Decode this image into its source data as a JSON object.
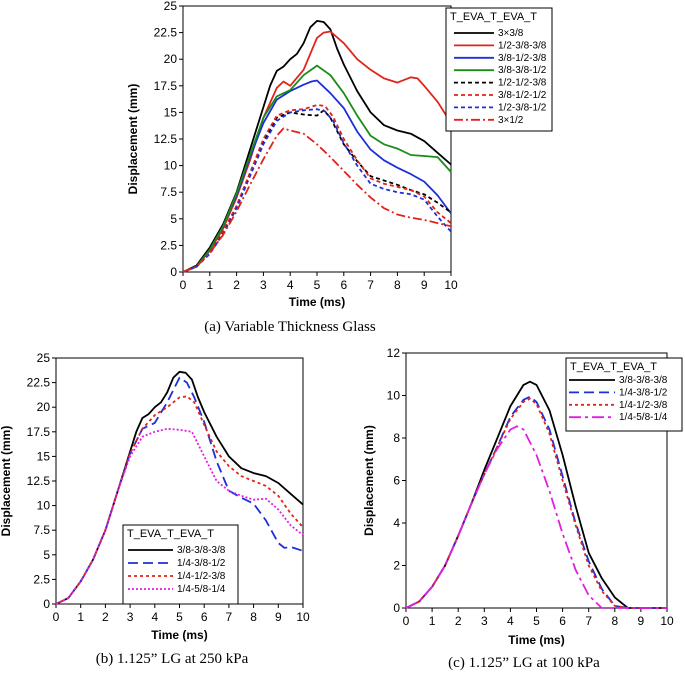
{
  "chart_data": [
    {
      "id": "a",
      "type": "line",
      "caption": "(a) Variable Thickness Glass",
      "xlabel": "Time (ms)",
      "ylabel": "Displacement (mm)",
      "xlim": [
        0,
        10
      ],
      "ylim": [
        0,
        25
      ],
      "xticks": [
        "0",
        "1",
        "2",
        "3",
        "4",
        "5",
        "6",
        "7",
        "8",
        "9",
        "10"
      ],
      "yticks": [
        "0",
        "2.5",
        "5",
        "7.5",
        "10",
        "12.5",
        "15",
        "17.5",
        "20",
        "22.5",
        "25"
      ],
      "legend_title": "T_EVA_T_EVA_T",
      "legend_position": "top-right",
      "series": [
        {
          "name": "3×3/8",
          "color": "#000000",
          "dash": "solid",
          "x": [
            0,
            0.5,
            1,
            1.5,
            2,
            2.5,
            3,
            3.25,
            3.5,
            3.75,
            4,
            4.25,
            4.5,
            4.75,
            5,
            5.25,
            5.5,
            5.75,
            6,
            6.5,
            7,
            7.5,
            8,
            8.5,
            9,
            9.5,
            10
          ],
          "y": [
            0,
            0.6,
            2.3,
            4.5,
            7.5,
            11.5,
            15.5,
            17.5,
            18.9,
            19.3,
            20,
            20.5,
            21.5,
            23,
            23.6,
            23.5,
            22.8,
            21,
            19.5,
            17,
            15,
            13.8,
            13.3,
            13,
            12.3,
            11.2,
            10.1
          ]
        },
        {
          "name": "1/2-3/8-3/8",
          "color": "#e0241b",
          "dash": "solid",
          "x": [
            0,
            0.5,
            1,
            1.5,
            2,
            2.5,
            3,
            3.5,
            3.75,
            4,
            4.5,
            5,
            5.25,
            5.5,
            6,
            6.5,
            7,
            7.5,
            8,
            8.5,
            8.75,
            9,
            9.5,
            10
          ],
          "y": [
            0,
            0.5,
            2,
            4.1,
            7,
            10.5,
            14.5,
            17.3,
            17.9,
            17.5,
            19,
            22,
            22.5,
            22.6,
            21.5,
            20,
            19,
            18.2,
            17.8,
            18.3,
            18.2,
            17.5,
            16,
            14
          ]
        },
        {
          "name": "3/8-1/2-3/8",
          "color": "#1e2fd8",
          "dash": "solid",
          "x": [
            0,
            0.5,
            1,
            1.5,
            2,
            2.5,
            3,
            3.5,
            4,
            4.5,
            4.8,
            5,
            5.5,
            6,
            6.5,
            7,
            7.5,
            8,
            8.5,
            9,
            9.5,
            10
          ],
          "y": [
            0,
            0.5,
            2.1,
            4.3,
            7.2,
            10.8,
            14,
            16.2,
            17,
            17.6,
            17.9,
            18,
            16.8,
            15.4,
            13.2,
            11.5,
            10.5,
            9.8,
            9.2,
            8.5,
            7.2,
            5.5
          ]
        },
        {
          "name": "3/8-3/8-1/2",
          "color": "#1a8c1a",
          "dash": "solid",
          "x": [
            0,
            0.5,
            1,
            1.5,
            2,
            2.5,
            3,
            3.5,
            4,
            4.5,
            5,
            5.5,
            6,
            6.5,
            7,
            7.5,
            8,
            8.5,
            9,
            9.5,
            10
          ],
          "y": [
            0,
            0.5,
            2.1,
            4.3,
            7.4,
            11,
            14.5,
            16.5,
            17.1,
            18.5,
            19.4,
            18.5,
            16.8,
            14.7,
            12.8,
            12,
            11.6,
            11,
            10.9,
            10.8,
            9.4
          ]
        },
        {
          "name": "1/2-1/2-3/8",
          "color": "#000000",
          "dash": "4,3",
          "x": [
            0,
            0.5,
            1,
            1.5,
            2,
            2.5,
            3,
            3.5,
            4,
            4.5,
            5,
            5.25,
            5.5,
            6,
            6.5,
            7,
            7.5,
            8,
            8.5,
            9,
            9.5,
            10
          ],
          "y": [
            0,
            0.5,
            1.8,
            3.8,
            6.2,
            9.3,
            12.3,
            14.5,
            15,
            14.8,
            14.7,
            15.2,
            14.5,
            12,
            10.4,
            9,
            8.6,
            8.2,
            7.7,
            7.3,
            6.5,
            5.6
          ]
        },
        {
          "name": "3/8-1/2-1/2",
          "color": "#e0241b",
          "dash": "4,3",
          "x": [
            0,
            0.5,
            1,
            1.5,
            2,
            2.5,
            3,
            3.5,
            4,
            4.5,
            5,
            5.3,
            5.6,
            6,
            6.5,
            7,
            7.5,
            8,
            8.5,
            9,
            9.5,
            10
          ],
          "y": [
            0,
            0.5,
            1.8,
            3.8,
            6.2,
            9.3,
            12.5,
            14.7,
            15.2,
            15.3,
            15.7,
            15.6,
            14.6,
            12.5,
            10.5,
            8.8,
            8.3,
            8,
            7.7,
            7.1,
            5.6,
            4.6
          ]
        },
        {
          "name": "1/2-3/8-1/2",
          "color": "#1e2fd8",
          "dash": "4,3",
          "x": [
            0,
            0.5,
            1,
            1.5,
            2,
            2.5,
            3,
            3.5,
            4,
            4.5,
            5,
            5.3,
            5.6,
            6,
            6.5,
            7,
            7.5,
            8,
            8.5,
            9,
            9.5,
            10
          ],
          "y": [
            0,
            0.5,
            1.7,
            3.6,
            6,
            9,
            12,
            14.2,
            15,
            15.2,
            15.3,
            15.1,
            14.2,
            12.1,
            10,
            8.3,
            7.8,
            7.5,
            7.3,
            6.8,
            5.2,
            3.8
          ]
        },
        {
          "name": "3×1/2",
          "color": "#e0241b",
          "dash": "9,3,2,3",
          "x": [
            0,
            0.5,
            1,
            1.5,
            2,
            2.5,
            3,
            3.5,
            3.75,
            4,
            4.5,
            5,
            5.5,
            6,
            6.5,
            7,
            7.5,
            8,
            8.5,
            9,
            9.5,
            10
          ],
          "y": [
            0,
            0.5,
            1.8,
            3.5,
            5.7,
            8.2,
            10.6,
            12.8,
            13.5,
            13.3,
            13,
            12,
            10.8,
            9.5,
            8.2,
            7,
            6,
            5.4,
            5.1,
            4.9,
            4.6,
            4.3
          ]
        }
      ]
    },
    {
      "id": "b",
      "type": "line",
      "caption": "(b) 1.125” LG at 250 kPa",
      "xlabel": "Time (ms)",
      "ylabel": "Displacement (mm)",
      "xlim": [
        0,
        10
      ],
      "ylim": [
        0,
        25
      ],
      "xticks": [
        "0",
        "1",
        "2",
        "3",
        "4",
        "5",
        "6",
        "7",
        "8",
        "9",
        "10"
      ],
      "yticks": [
        "0",
        "2.5",
        "5",
        "7.5",
        "10",
        "12.5",
        "15",
        "17.5",
        "20",
        "22.5",
        "25"
      ],
      "legend_title": "T_EVA_T_EVA_T",
      "legend_position": "bottom-left",
      "series": [
        {
          "name": "3/8-3/8-3/8",
          "color": "#000000",
          "dash": "solid",
          "x": [
            0,
            0.5,
            1,
            1.5,
            2,
            2.5,
            3,
            3.25,
            3.5,
            3.75,
            4,
            4.25,
            4.5,
            4.75,
            5,
            5.25,
            5.5,
            5.75,
            6,
            6.5,
            7,
            7.5,
            8,
            8.5,
            9,
            9.5,
            10
          ],
          "y": [
            0,
            0.6,
            2.3,
            4.5,
            7.5,
            11.5,
            15.5,
            17.5,
            18.9,
            19.3,
            20,
            20.5,
            21.5,
            23,
            23.6,
            23.5,
            22.8,
            21,
            19.5,
            17,
            15,
            13.8,
            13.3,
            13,
            12.3,
            11.2,
            10.1
          ]
        },
        {
          "name": "1/4-3/8-1/2",
          "color": "#1e2fd8",
          "dash": "10,5",
          "x": [
            0,
            0.5,
            1,
            1.5,
            2,
            2.5,
            3,
            3.5,
            4,
            4.5,
            4.8,
            5,
            5.3,
            5.6,
            6,
            6.5,
            7,
            7.5,
            8,
            8.5,
            9,
            9.25,
            9.5,
            10
          ],
          "y": [
            0,
            0.6,
            2.3,
            4.5,
            7.5,
            11.5,
            15.3,
            17.8,
            18.4,
            20.5,
            22,
            23,
            22.5,
            21,
            18.5,
            14.5,
            11.5,
            10.8,
            10.2,
            8.5,
            6.2,
            5.7,
            5.8,
            5.4
          ]
        },
        {
          "name": "1/4-1/2-3/8",
          "color": "#e0241b",
          "dash": "3,3",
          "x": [
            0,
            0.5,
            1,
            1.5,
            2,
            2.5,
            3,
            3.5,
            4,
            4.5,
            5,
            5.3,
            5.6,
            6,
            6.5,
            7,
            7.5,
            8,
            8.5,
            9,
            9.5,
            10
          ],
          "y": [
            0,
            0.6,
            2.3,
            4.5,
            7.5,
            11.5,
            15.3,
            17.8,
            19.2,
            20,
            21,
            21.1,
            20.5,
            18.2,
            15.5,
            14,
            13,
            12.5,
            12,
            11,
            9.2,
            7.8
          ]
        },
        {
          "name": "1/4-5/8-1/4",
          "color": "#e31ee3",
          "dash": "2,2",
          "x": [
            0,
            0.5,
            1,
            1.5,
            2,
            2.5,
            3,
            3.5,
            4,
            4.5,
            5,
            5.5,
            6,
            6.5,
            7,
            7.5,
            8,
            8.5,
            9,
            9.5,
            10
          ],
          "y": [
            0,
            0.6,
            2.3,
            4.5,
            7.5,
            11.5,
            15,
            17,
            17.5,
            17.8,
            17.7,
            17.5,
            15,
            12.5,
            11.5,
            11,
            10.6,
            10.7,
            9.6,
            8,
            7
          ]
        }
      ]
    },
    {
      "id": "c",
      "type": "line",
      "caption": "(c) 1.125” LG at 100 kPa",
      "xlabel": "Time (ms)",
      "ylabel": "Displacement (mm)",
      "xlim": [
        0,
        10
      ],
      "ylim": [
        0,
        12
      ],
      "xticks": [
        "0",
        "1",
        "2",
        "3",
        "4",
        "5",
        "6",
        "7",
        "8",
        "9",
        "10"
      ],
      "yticks": [
        "0",
        "2",
        "4",
        "6",
        "8",
        "10",
        "12"
      ],
      "legend_title": "T_EVA_T_EVA_T",
      "legend_position": "top-right",
      "series": [
        {
          "name": "3/8-3/8-3/8",
          "color": "#000000",
          "dash": "solid",
          "x": [
            0,
            0.5,
            1,
            1.5,
            2,
            2.5,
            3,
            3.5,
            4,
            4.5,
            4.75,
            5,
            5.5,
            6,
            6.5,
            7,
            7.5,
            8,
            8.5,
            9,
            10
          ],
          "y": [
            0,
            0.3,
            1,
            2,
            3.4,
            4.9,
            6.5,
            8,
            9.5,
            10.5,
            10.65,
            10.5,
            9.3,
            7.2,
            4.8,
            2.6,
            1.4,
            0.5,
            0,
            0,
            0
          ]
        },
        {
          "name": "1/4-3/8-1/2",
          "color": "#1e2fd8",
          "dash": "10,5",
          "x": [
            0,
            0.5,
            1,
            1.5,
            2,
            2.5,
            3,
            3.5,
            4,
            4.5,
            4.75,
            5,
            5.5,
            6,
            6.5,
            7,
            7.5,
            8,
            8.5,
            9,
            10
          ],
          "y": [
            0,
            0.3,
            1,
            2,
            3.4,
            4.9,
            6.3,
            7.6,
            9,
            9.8,
            9.95,
            9.7,
            8.4,
            6.2,
            4,
            2.2,
            0.9,
            0.1,
            0,
            0,
            0
          ]
        },
        {
          "name": "1/4-1/2-3/8",
          "color": "#e0241b",
          "dash": "3,3",
          "x": [
            0,
            0.5,
            1,
            1.5,
            2,
            2.5,
            3,
            3.5,
            4,
            4.5,
            4.75,
            5,
            5.5,
            6,
            6.5,
            7,
            7.5,
            8,
            8.5,
            9,
            10
          ],
          "y": [
            0,
            0.3,
            1,
            2,
            3.4,
            4.9,
            6.3,
            7.6,
            8.9,
            9.7,
            9.85,
            9.6,
            8.2,
            6,
            3.9,
            2,
            0.8,
            0.1,
            0,
            0,
            0
          ]
        },
        {
          "name": "1/4-5/8-1/4",
          "color": "#e31ee3",
          "dash": "12,4,3,4",
          "x": [
            0,
            0.5,
            1,
            1.5,
            2,
            2.5,
            3,
            3.5,
            4,
            4.25,
            4.5,
            5,
            5.5,
            6,
            6.5,
            7,
            7.5,
            8,
            9,
            10
          ],
          "y": [
            0,
            0.3,
            1,
            2,
            3.4,
            4.9,
            6.3,
            7.5,
            8.4,
            8.55,
            8.4,
            7.2,
            5.5,
            3.5,
            1.8,
            0.6,
            0,
            0,
            0,
            0
          ]
        }
      ]
    }
  ]
}
